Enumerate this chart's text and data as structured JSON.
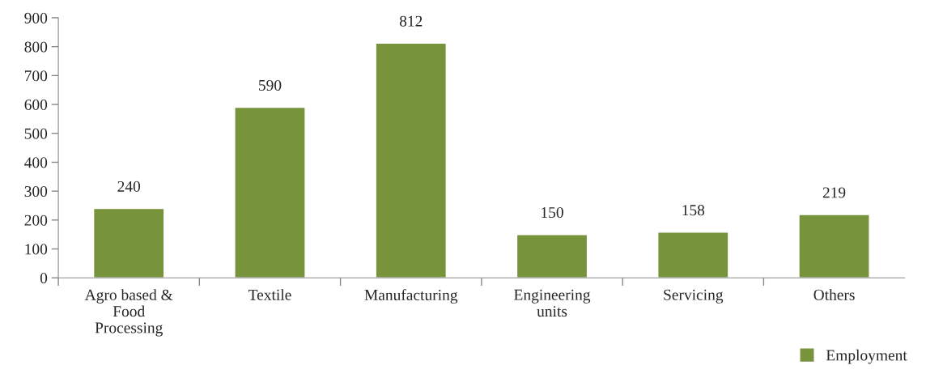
{
  "chart_data": {
    "type": "bar",
    "categories": [
      "Agro based &\nFood\nProcessing",
      "Textile",
      "Manufacturing",
      "Engineering\nunits",
      "Servicing",
      "Others"
    ],
    "series": [
      {
        "name": "Employment",
        "color": "#77933c",
        "values": [
          240,
          590,
          812,
          150,
          158,
          219
        ]
      }
    ],
    "ylim": [
      0,
      900
    ],
    "yticks": [
      0,
      100,
      200,
      300,
      400,
      500,
      600,
      700,
      800,
      900
    ],
    "data_labels": true,
    "grid": false,
    "legend": "bottom right"
  }
}
